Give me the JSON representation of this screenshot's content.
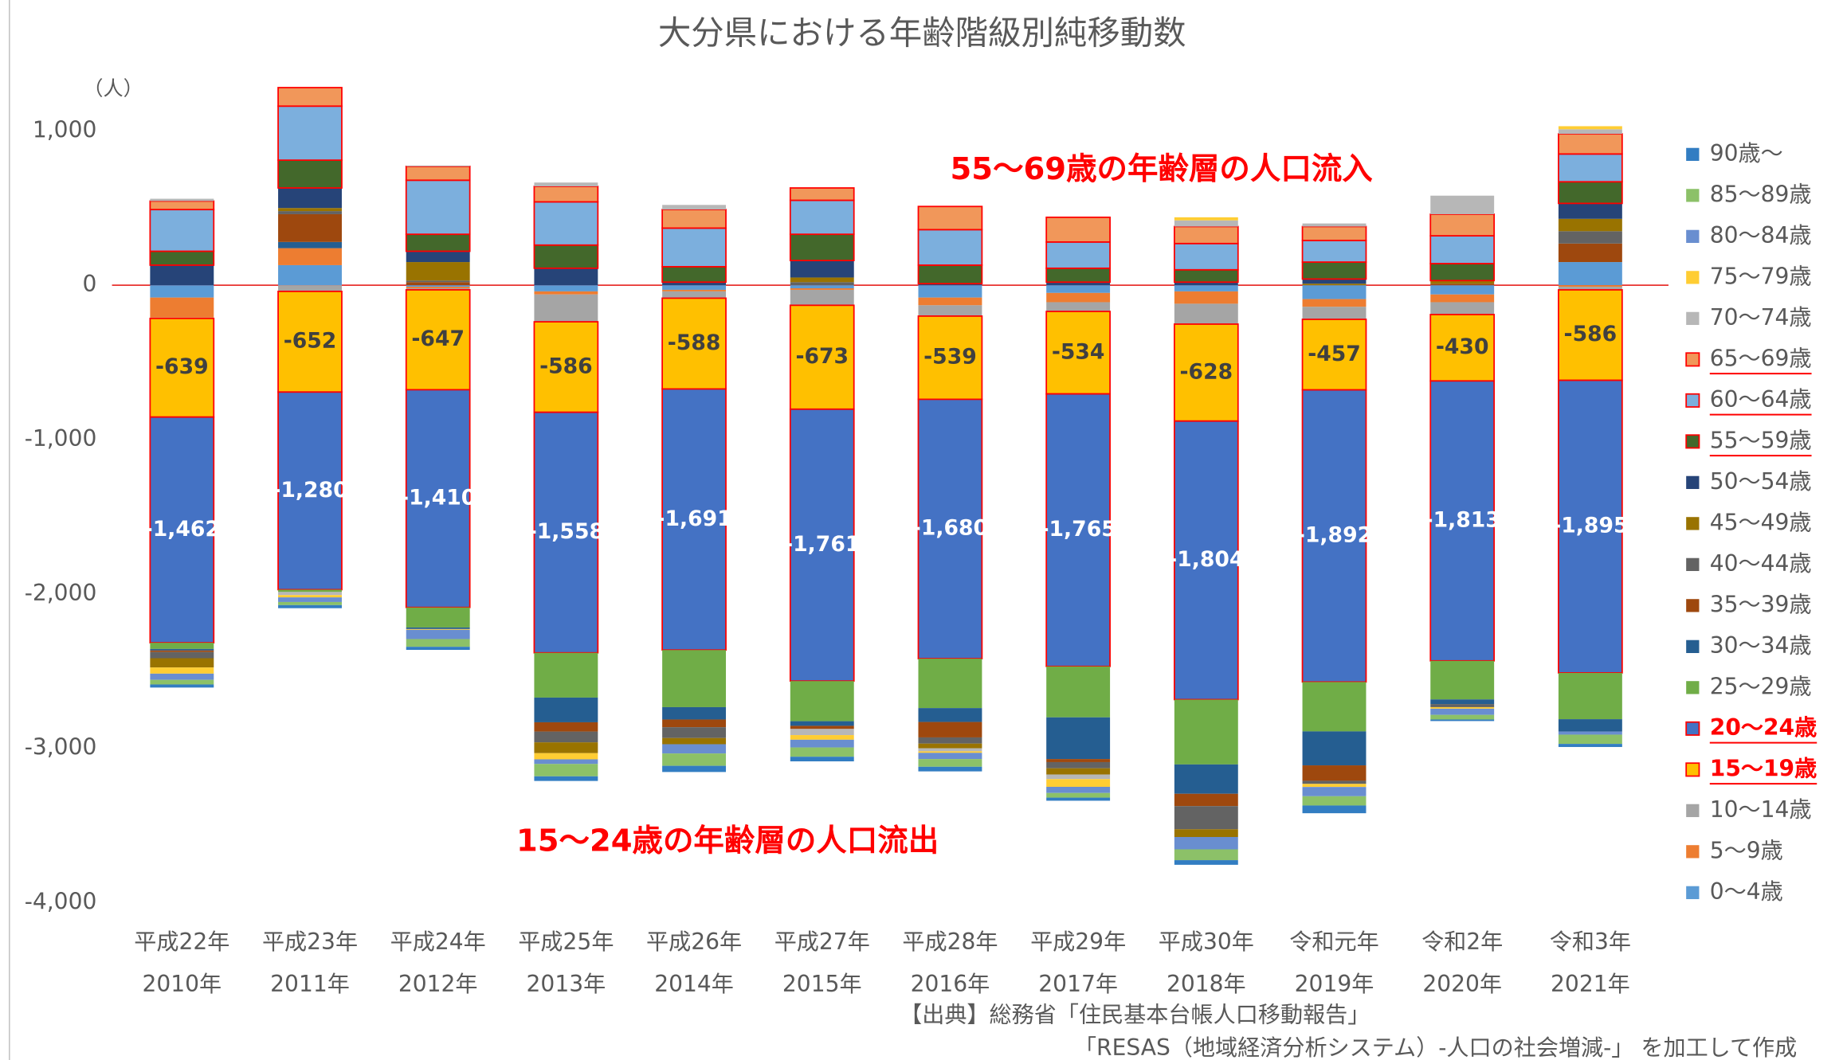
{
  "chart_data": {
    "type": "stacked_bar",
    "title": "大分県における年齢階級別純移動数",
    "y_unit_label": "（人）",
    "categories": [
      [
        "平成22年",
        "2010年"
      ],
      [
        "平成23年",
        "2011年"
      ],
      [
        "平成24年",
        "2012年"
      ],
      [
        "平成25年",
        "2013年"
      ],
      [
        "平成26年",
        "2014年"
      ],
      [
        "平成27年",
        "2015年"
      ],
      [
        "平成28年",
        "2016年"
      ],
      [
        "平成29年",
        "2017年"
      ],
      [
        "平成30年",
        "2018年"
      ],
      [
        "令和元年",
        "2019年"
      ],
      [
        "令和2年",
        "2020年"
      ],
      [
        "令和3年",
        "2021年"
      ]
    ],
    "ylim": [
      -4000,
      1300
    ],
    "yticks": [
      {
        "value": 1000,
        "label": "1,000"
      },
      0,
      {
        "value": -1000,
        "label": "-1,000"
      },
      {
        "value": -2000,
        "label": "-2,000"
      },
      {
        "value": -3000,
        "label": "-3,000"
      },
      {
        "value": -4000,
        "label": "-4,000"
      }
    ],
    "grid": false,
    "zero_line_color": "#e8322f",
    "legend_position": "right",
    "annotations": [
      "55〜69歳の年齢層の人口流入",
      "15〜24歳の年齢層の人口流出"
    ],
    "annotation_color": "#ff0000",
    "source": [
      "【出典】総務省「住民基本台帳人口移動報告」",
      "「RESAS（地域経済分析システム）-人口の社会増減-」 を加工して作成"
    ],
    "series": [
      {
        "name": "0〜4歳",
        "color": "#5b9bd5",
        "values": [
          -80,
          130,
          -10,
          -40,
          -30,
          -20,
          -80,
          -50,
          -40,
          -90,
          -60,
          150
        ]
      },
      {
        "name": "5〜9歳",
        "color": "#ed7d31",
        "values": [
          -130,
          110,
          -10,
          -20,
          -10,
          -10,
          -50,
          -60,
          -80,
          -50,
          -50,
          -10
        ]
      },
      {
        "name": "10〜14歳",
        "color": "#a5a5a5",
        "values": [
          -5,
          -40,
          -10,
          -177,
          -44,
          -100,
          -70,
          -60,
          -132,
          -81,
          -80,
          -20
        ]
      },
      {
        "name": "15〜19歳",
        "color": "#ffc000",
        "outline": "#ff0000",
        "legend_style": "strong",
        "label_color": "#404040",
        "values": [
          -639,
          -652,
          -647,
          -586,
          -588,
          -673,
          -539,
          -534,
          -628,
          -457,
          -430,
          -586
        ]
      },
      {
        "name": "20〜24歳",
        "color": "#4472c4",
        "outline": "#ff0000",
        "legend_style": "strong",
        "label_color": "#ffffff",
        "values": [
          -1462,
          -1280,
          -1410,
          -1558,
          -1691,
          -1761,
          -1680,
          -1765,
          -1804,
          -1892,
          -1813,
          -1895
        ],
        "value_labels": [
          "-1,462",
          "-1,280",
          "-1,410",
          "-1,558",
          "-1,691",
          "-1,761",
          "-1,680",
          "-1,765",
          "-1,804",
          "-1,892",
          "-1,813",
          "-1,895"
        ]
      },
      {
        "name": "25〜29歳",
        "color": "#70ad47",
        "values": [
          -40,
          -15,
          -130,
          -290,
          -370,
          -260,
          -320,
          -330,
          -420,
          -320,
          -250,
          -300
        ]
      },
      {
        "name": "30〜34歳",
        "color": "#255e91",
        "values": [
          -10,
          40,
          -10,
          -160,
          -80,
          -30,
          -90,
          -270,
          -190,
          -220,
          -30,
          -80
        ]
      },
      {
        "name": "35〜39歳",
        "color": "#9e480e",
        "values": [
          -10,
          180,
          20,
          -60,
          -50,
          -20,
          -100,
          -20,
          -80,
          -100,
          10,
          120
        ]
      },
      {
        "name": "40〜44歳",
        "color": "#636363",
        "values": [
          -40,
          20,
          10,
          -70,
          -70,
          20,
          -40,
          -40,
          -150,
          -20,
          -20,
          80
        ]
      },
      {
        "name": "45〜49歳",
        "color": "#997300",
        "values": [
          -60,
          20,
          120,
          -70,
          -40,
          30,
          -30,
          -40,
          -50,
          10,
          20,
          80
        ]
      },
      {
        "name": "50〜54歳",
        "color": "#264478",
        "values": [
          130,
          130,
          70,
          110,
          20,
          110,
          10,
          20,
          20,
          30,
          0,
          100
        ]
      },
      {
        "name": "55〜59歳",
        "color": "#43682b",
        "outline": "#ff0000",
        "legend_style": "underline",
        "values": [
          90,
          180,
          110,
          150,
          100,
          170,
          120,
          90,
          80,
          110,
          110,
          140
        ]
      },
      {
        "name": "60〜64歳",
        "color": "#7cafdd",
        "outline": "#ff0000",
        "legend_style": "underline",
        "values": [
          270,
          350,
          350,
          280,
          250,
          220,
          230,
          170,
          170,
          140,
          180,
          180
        ]
      },
      {
        "name": "65〜69歳",
        "color": "#f1975a",
        "outline": "#ff0000",
        "legend_style": "underline",
        "values": [
          55,
          120,
          90,
          100,
          120,
          80,
          150,
          160,
          110,
          90,
          140,
          130
        ]
      },
      {
        "name": "70〜74歳",
        "color": "#b7b7b7",
        "values": [
          15,
          -20,
          5,
          25,
          30,
          -40,
          -20,
          -30,
          40,
          20,
          120,
          30
        ]
      },
      {
        "name": "75〜79歳",
        "color": "#ffcd33",
        "values": [
          -40,
          -15,
          -5,
          -40,
          0,
          -30,
          -10,
          -50,
          20,
          -20,
          -10,
          20
        ]
      },
      {
        "name": "80〜84歳",
        "color": "#698ed0",
        "values": [
          -40,
          -30,
          -60,
          -30,
          -60,
          -50,
          -40,
          -40,
          -80,
          -60,
          -40,
          -20
        ]
      },
      {
        "name": "85〜89歳",
        "color": "#8cc168",
        "values": [
          -30,
          -20,
          -50,
          -80,
          -80,
          -60,
          -50,
          -30,
          -70,
          -60,
          -30,
          -60
        ]
      },
      {
        "name": "90歳〜",
        "color": "#327dc2",
        "values": [
          -20,
          -20,
          -20,
          -30,
          -40,
          -30,
          -30,
          -20,
          -30,
          -50,
          -10,
          -20
        ]
      }
    ]
  }
}
